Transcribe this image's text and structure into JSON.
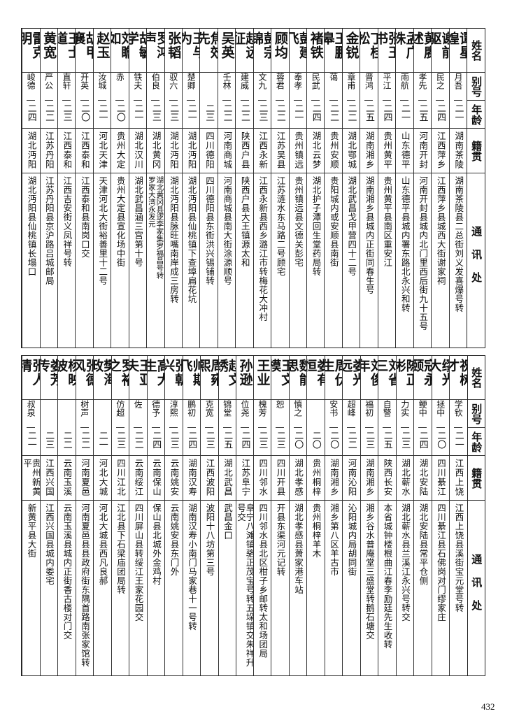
{
  "headers": [
    "姓名",
    "别号",
    "年龄",
    "籍贯",
    "通讯处"
  ],
  "tables": [
    {
      "rows": [
        {
          "name": "谭星煌",
          "alias": "月吾",
          "age": "二一",
          "native": "湖南茶陵",
          "address": "湖南茶陵县二总街刘义发喜爆号转"
        },
        {
          "name": "谢前驱",
          "alias": "民之",
          "age": "二四",
          "native": "江西萍乡",
          "address": "江西萍乡县城西大街谢家祠"
        },
        {
          "name": "黄赓述",
          "alias": "孝先",
          "age": "二五",
          "native": "河南开封",
          "address": "河南开封县城内北门里西后街九十五号"
        },
        {
          "name": "孟广洙",
          "alias": "雨航",
          "age": "二一",
          "native": "山东德平",
          "address": "山东德平县城内署东路北永兴和转"
        },
        {
          "name": "张玉书",
          "alias": "平江",
          "age": "二四",
          "native": "贵州黄平",
          "address": "贵州黄平县南区重安江"
        },
        {
          "name": "丁桂松",
          "alias": "晋鸿",
          "age": "二五",
          "native": "湖南湘乡",
          "address": "湖南湘乡县城内正街同春生号"
        },
        {
          "name": "金锐",
          "alias": "章甫",
          "age": "二二",
          "native": "湖北鄂城",
          "address": "湖北武昌戈甲营四十二号"
        },
        {
          "name": "王鹏皋",
          "alias": "蔼",
          "age": "二二",
          "native": "贵州安顺",
          "address": "贵阳城内或安顺县南街"
        },
        {
          "name": "褚铁",
          "alias": "民武",
          "age": "二四",
          "native": "湖北云梦",
          "address": "湖北护子潭回生堂药局转"
        },
        {
          "name": "彭建飞",
          "alias": "奉孝",
          "age": "二一",
          "native": "贵州镇远",
          "address": "贵州镇远县文德关彭宅"
        },
        {
          "name": "顾均",
          "alias": "蓉君",
          "age": "二二",
          "native": "江苏吴县",
          "address": "江苏涟水东马路二号顾宅"
        },
        {
          "name": "彭宗锦",
          "alias": "文九",
          "age": "二三",
          "native": "江西永新",
          "address": "江西永新县西乡潞江市转梅花大冲村"
        },
        {
          "name": "赵远征",
          "alias": "建威",
          "age": "二二",
          "native": "陕西户县",
          "address": "陕西户县大王镇源太和"
        },
        {
          "name": "吴英",
          "alias": "壬林",
          "age": "二二",
          "native": "河南商城",
          "address": "河南商城县南大街涂源顺号"
        },
        {
          "name": "焦效先",
          "alias": "",
          "age": "二三",
          "native": "四川德阳",
          "address": "四川德阳县东街洪兴锡铺转"
        },
        {
          "name": "王与为",
          "alias": "楚卿",
          "age": "二一",
          "native": "湖北沔阳",
          "address": "湖北沔阳县仙桃镇下查埠扁花坑"
        },
        {
          "name": "张韬",
          "alias": "驭六",
          "age": "二三",
          "native": "湖北沔阳",
          "address": "湖北沔阳县脉旺嘴南岸成三房转"
        },
        {
          "name": "罗鸿声",
          "alias": "伯良",
          "age": "二三",
          "native": "湖北黄冈",
          "address": "湖北黄冈县逻李家集罗福昌号转",
          "address2": "罗家大湾永发元"
        },
        {
          "name": "胡敏学",
          "alias": "铁夫",
          "age": "二一",
          "native": "湖北汉川",
          "address": "湖北武昌涵三宫第十号"
        },
        {
          "name": "刘瞻如",
          "alias": "赤",
          "age": "二〇",
          "native": "贵州大定",
          "address": "贵州大定县宣化场中街"
        },
        {
          "name": "赵玉",
          "alias": "汝城",
          "age": "二一",
          "native": "河北天津",
          "address": "天津河北大街裕善里十二号"
        },
        {
          "name": "胡甲襄",
          "alias": "开英",
          "age": "二〇",
          "native": "江西泰和",
          "address": "江西泰和县南岗口交"
        },
        {
          "name": "王士道",
          "alias": "直轩",
          "age": "二三",
          "native": "江西泰和",
          "address": "江西吉安街义凤祥号转"
        },
        {
          "name": "黄宽",
          "alias": "严公",
          "age": "二二",
          "native": "江苏丹阳",
          "address": "江苏丹阳县京沪路吕城邮局"
        },
        {
          "name": "雷克明",
          "alias": "峻德",
          "age": "二四",
          "native": "湖北沔阳",
          "address": "湖北沔阳县仙桃镇长塌口"
        }
      ]
    },
    {
      "rows": [
        {
          "name": "祝树才",
          "alias": "学钦",
          "age": "二一",
          "native": "江西上饶",
          "address": "江西上饶县溪街宝元堂号转"
        },
        {
          "name": "缪光大",
          "alias": "拯中",
          "age": "二〇",
          "native": "四川綦江",
          "address": "四川綦江县石佛岗对门缪家庄"
        },
        {
          "name": "寇永颐",
          "alias": "鲠中",
          "age": "二四",
          "native": "湖北安陆",
          "address": "湖北安陆县常平仓侧"
        },
        {
          "name": "陈正彬",
          "alias": "力实",
          "age": "二三",
          "native": "湖北蕲水",
          "address": "湖北蕲水县兰溪江永兴号转交"
        },
        {
          "name": "刘省三",
          "alias": "自警",
          "age": "二五",
          "native": "陕西长安",
          "address": "本省城钟楼根曲江春李励廷先生收转"
        },
        {
          "name": "刘俊年",
          "alias": "福初",
          "age": "二三",
          "native": "湖南湘乡",
          "address": "湘乡谷水普庵堂三盛堂转鹅石塘交"
        },
        {
          "name": "娄光远",
          "alias": "超峰",
          "age": "二二",
          "native": "河南沁阳",
          "address": "沁阳城内局胡同街"
        },
        {
          "name": "周伏生",
          "alias": "安书",
          "age": "二〇",
          "native": "湖南湘乡",
          "address": "湘乡第八区羊古市"
        },
        {
          "name": "娄有恒",
          "alias": "",
          "age": "二〇",
          "native": "贵州桐梓",
          "address": "贵州桐梓羊木"
        },
        {
          "name": "魏能思",
          "alias": "慎之",
          "age": "二〇",
          "native": "湖北孝感",
          "address": "湖北孝感县萧家港车站"
        },
        {
          "name": "王文模",
          "alias": "恕",
          "age": "二三",
          "native": "四川开县",
          "address": "开县东渠河元记转"
        },
        {
          "name": "王业",
          "alias": "槐芳",
          "age": "二三",
          "native": "四川邻水",
          "address": "四川邻水县北区柑子乡邮转太和场团局"
        },
        {
          "name": "孙逊",
          "alias": "位尧",
          "age": "二四",
          "native": "江苏阜宁",
          "address": "阜宁八滩镇骆正茂宝号转五垛镇交朱祥升号交"
        },
        {
          "name": "赵文绣",
          "alias": "锦堂",
          "age": "二五",
          "native": "湖北武昌",
          "address": "武昌金口"
        },
        {
          "name": "周雍熙",
          "alias": "克宽",
          "age": "二三",
          "native": "江西波阳",
          "address": "波阳十八坊第三号"
        },
        {
          "name": "帅斯飞",
          "alias": "鹏初",
          "age": "二四",
          "native": "湖南汉寿",
          "address": "湖南汉寿小南门马家巷十一号转"
        },
        {
          "name": "张朝兴",
          "alias": "淳熙",
          "age": "二三",
          "native": "云南姚安",
          "address": "云南姚安县东门外"
        },
        {
          "name": "高大生",
          "alias": "德予",
          "age": "二四",
          "native": "云南保山",
          "address": "保山县北城外金鸡村"
        },
        {
          "name": "王亚夫",
          "alias": "佐",
          "age": "二二",
          "native": "云南绥江",
          "address": "四川屏山县转绥江王家花园交"
        },
        {
          "name": "罗裕之",
          "alias": "仿超",
          "age": "二三",
          "native": "四川江北",
          "address": "江北县下石梁庙团局转"
        },
        {
          "name": "樊海政",
          "alias": "",
          "age": "二一",
          "native": "河北大城",
          "address": "河北大城县西凡良郝"
        },
        {
          "name": "张德风",
          "alias": "树声",
          "age": "二二",
          "native": "河南夏邑",
          "address": "河南夏邑县县政府街东隅首路南张家馆转"
        },
        {
          "name": "杨映波",
          "alias": "",
          "age": "二二",
          "native": "云南玉溪",
          "address": "云南玉溪县城内正街香古楼对门交"
        },
        {
          "name": "娄芳传",
          "alias": "",
          "age": "二三",
          "native": "江西兴国",
          "address": "江西兴国县城内娄宅"
        },
        {
          "name": "张人清",
          "alias": "叔泉",
          "age": "二一",
          "native": "贵州新黄平",
          "address": "新黄平县大街"
        }
      ]
    }
  ],
  "page_number": "432"
}
